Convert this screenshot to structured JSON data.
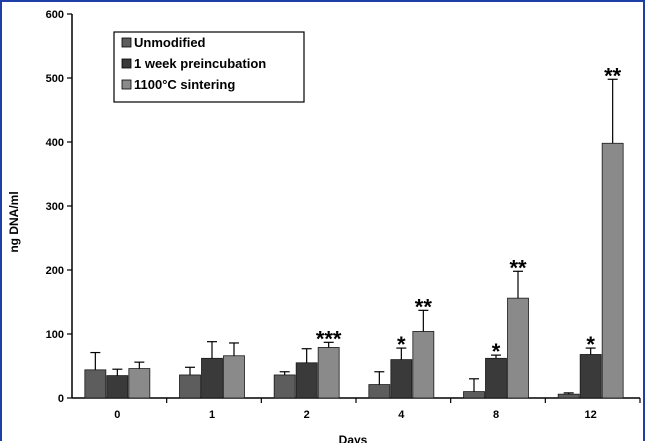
{
  "chart_data": {
    "type": "bar",
    "title": "",
    "xlabel": "Days",
    "ylabel": "ng DNA/ml",
    "ylim": [
      0,
      600
    ],
    "y_ticks": [
      0,
      100,
      200,
      300,
      400,
      500,
      600
    ],
    "categories": [
      "0",
      "1",
      "2",
      "4",
      "8",
      "12"
    ],
    "series": [
      {
        "name": "Unmodified",
        "color": "#5d5d5d",
        "values": [
          44,
          36,
          36,
          21,
          10,
          6
        ],
        "errors": [
          27,
          12,
          5,
          20,
          20,
          2
        ]
      },
      {
        "name": "1 week preincubation",
        "color": "#3a3a3a",
        "values": [
          35,
          62,
          55,
          60,
          62,
          68
        ],
        "errors": [
          10,
          26,
          22,
          18,
          5,
          10
        ]
      },
      {
        "name": "1100°C sintering",
        "color": "#8a8a8a",
        "values": [
          46,
          66,
          79,
          104,
          156,
          398
        ],
        "errors": [
          10,
          20,
          8,
          33,
          42,
          100
        ]
      }
    ],
    "significance": [
      {
        "category": "2",
        "series": 2,
        "label": "***"
      },
      {
        "category": "4",
        "series": 1,
        "label": "*"
      },
      {
        "category": "4",
        "series": 2,
        "label": "**"
      },
      {
        "category": "8",
        "series": 1,
        "label": "*"
      },
      {
        "category": "8",
        "series": 2,
        "label": "**"
      },
      {
        "category": "12",
        "series": 1,
        "label": "*"
      },
      {
        "category": "12",
        "series": 2,
        "label": "**"
      }
    ],
    "legend_position": "top-left",
    "grid": false
  }
}
